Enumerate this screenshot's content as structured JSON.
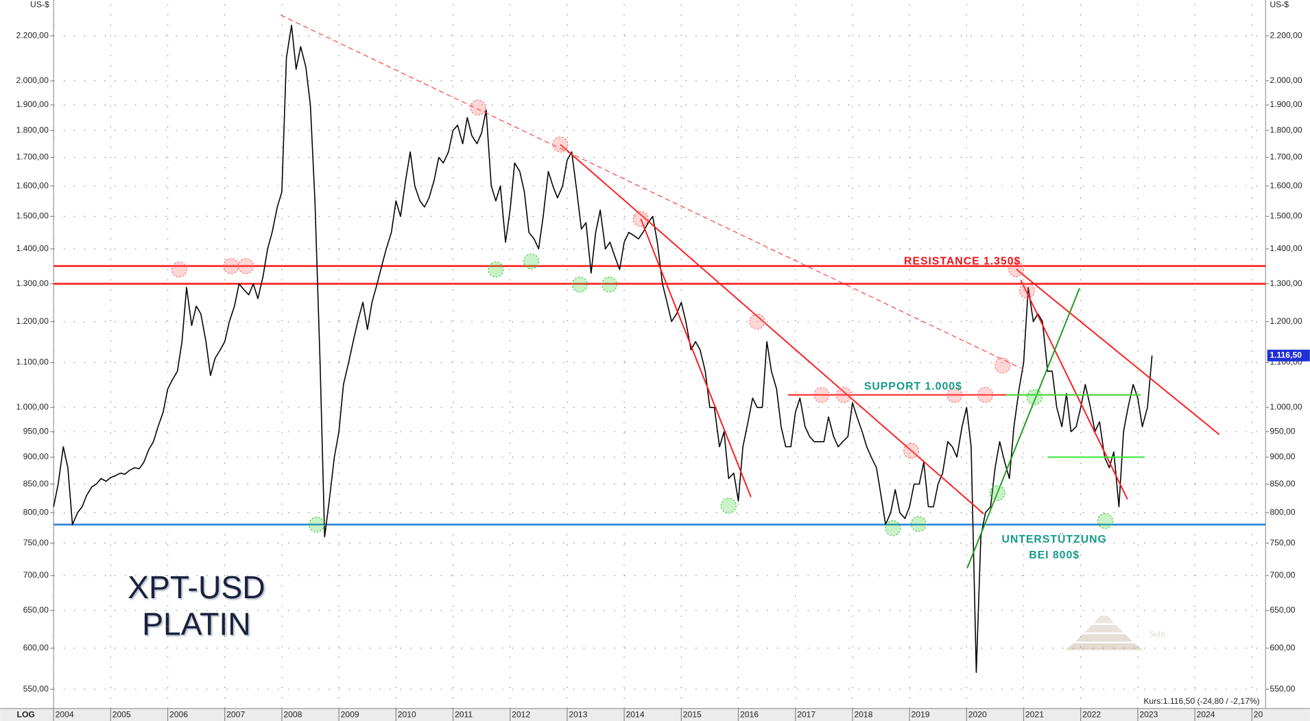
{
  "chart_data": {
    "type": "line",
    "title": "XPT-USD",
    "subtitle": "PLATIN",
    "y_unit": "US-$",
    "scale_label": "LOG",
    "log_scale": true,
    "grid": true,
    "logo": "Solit",
    "quote_text": "Kurs:1.116,50 (-24,80 / -2,17%)",
    "last_price": 1116.5,
    "last_price_label": "1.116,50",
    "xlim": [
      2004,
      2025.24
    ],
    "ylim": [
      528,
      2353
    ],
    "xticks": [
      2004,
      2005,
      2006,
      2007,
      2008,
      2009,
      2010,
      2011,
      2012,
      2013,
      2014,
      2015,
      2016,
      2017,
      2018,
      2019,
      2020,
      2021,
      2022,
      2023,
      2024,
      {
        "value": 2025,
        "label": "20"
      }
    ],
    "yticks": [
      {
        "value": 550,
        "label": "550,00"
      },
      {
        "value": 600,
        "label": "600,00"
      },
      {
        "value": 650,
        "label": "650,00"
      },
      {
        "value": 700,
        "label": "700,00"
      },
      {
        "value": 750,
        "label": "750,00"
      },
      {
        "value": 800,
        "label": "800,00"
      },
      {
        "value": 850,
        "label": "850,00"
      },
      {
        "value": 900,
        "label": "900,00"
      },
      {
        "value": 950,
        "label": "950,00"
      },
      {
        "value": 1000,
        "label": "1.000,00"
      },
      {
        "value": 1100,
        "label": "1.100,00"
      },
      {
        "value": 1200,
        "label": "1.200,00"
      },
      {
        "value": 1300,
        "label": "1.300,00"
      },
      {
        "value": 1400,
        "label": "1.400,00"
      },
      {
        "value": 1500,
        "label": "1.500,00"
      },
      {
        "value": 1600,
        "label": "1.600,00"
      },
      {
        "value": 1700,
        "label": "1.700,00"
      },
      {
        "value": 1800,
        "label": "1.800,00"
      },
      {
        "value": 1900,
        "label": "1.900,00"
      },
      {
        "value": 2000,
        "label": "2.000,00"
      },
      {
        "value": 2200,
        "label": "2.200,00"
      }
    ],
    "x": [
      2004,
      2004.08,
      2004.17,
      2004.25,
      2004.33,
      2004.42,
      2004.5,
      2004.58,
      2004.67,
      2004.75,
      2004.83,
      2004.92,
      2005,
      2005.08,
      2005.17,
      2005.25,
      2005.33,
      2005.42,
      2005.5,
      2005.58,
      2005.67,
      2005.75,
      2005.83,
      2005.92,
      2006,
      2006.08,
      2006.17,
      2006.25,
      2006.33,
      2006.42,
      2006.5,
      2006.58,
      2006.67,
      2006.75,
      2006.83,
      2006.92,
      2007,
      2007.08,
      2007.17,
      2007.25,
      2007.33,
      2007.42,
      2007.5,
      2007.58,
      2007.67,
      2007.75,
      2007.83,
      2007.92,
      2008,
      2008.08,
      2008.17,
      2008.25,
      2008.33,
      2008.42,
      2008.5,
      2008.58,
      2008.67,
      2008.75,
      2008.83,
      2008.92,
      2009,
      2009.08,
      2009.17,
      2009.25,
      2009.33,
      2009.42,
      2009.5,
      2009.58,
      2009.67,
      2009.75,
      2009.83,
      2009.92,
      2010,
      2010.08,
      2010.17,
      2010.25,
      2010.33,
      2010.42,
      2010.5,
      2010.58,
      2010.67,
      2010.75,
      2010.83,
      2010.92,
      2011,
      2011.08,
      2011.17,
      2011.25,
      2011.33,
      2011.42,
      2011.5,
      2011.58,
      2011.67,
      2011.75,
      2011.83,
      2011.92,
      2012,
      2012.08,
      2012.17,
      2012.25,
      2012.33,
      2012.42,
      2012.5,
      2012.58,
      2012.67,
      2012.75,
      2012.83,
      2012.92,
      2013,
      2013.08,
      2013.17,
      2013.25,
      2013.33,
      2013.42,
      2013.5,
      2013.58,
      2013.67,
      2013.75,
      2013.83,
      2013.92,
      2014,
      2014.08,
      2014.17,
      2014.25,
      2014.33,
      2014.42,
      2014.5,
      2014.58,
      2014.67,
      2014.75,
      2014.83,
      2014.92,
      2015,
      2015.08,
      2015.17,
      2015.25,
      2015.33,
      2015.42,
      2015.5,
      2015.58,
      2015.67,
      2015.75,
      2015.83,
      2015.92,
      2016,
      2016.08,
      2016.17,
      2016.25,
      2016.33,
      2016.42,
      2016.5,
      2016.58,
      2016.67,
      2016.75,
      2016.83,
      2016.92,
      2017,
      2017.08,
      2017.17,
      2017.25,
      2017.33,
      2017.42,
      2017.5,
      2017.58,
      2017.67,
      2017.75,
      2017.83,
      2017.92,
      2018,
      2018.08,
      2018.17,
      2018.25,
      2018.33,
      2018.42,
      2018.5,
      2018.58,
      2018.67,
      2018.75,
      2018.83,
      2018.92,
      2019,
      2019.08,
      2019.17,
      2019.25,
      2019.33,
      2019.42,
      2019.5,
      2019.58,
      2019.67,
      2019.75,
      2019.83,
      2019.92,
      2020,
      2020.08,
      2020.17,
      2020.25,
      2020.33,
      2020.42,
      2020.5,
      2020.58,
      2020.67,
      2020.75,
      2020.83,
      2020.92,
      2021,
      2021.08,
      2021.17,
      2021.25,
      2021.33,
      2021.42,
      2021.5,
      2021.58,
      2021.67,
      2021.75,
      2021.83,
      2021.92,
      2022,
      2022.08,
      2022.17,
      2022.25,
      2022.33,
      2022.42,
      2022.5,
      2022.58,
      2022.67,
      2022.75,
      2022.83,
      2022.92,
      2023,
      2023.08,
      2023.17,
      2023.25
    ],
    "series": [
      {
        "color": "#000000",
        "values": [
          810,
          850,
          920,
          880,
          780,
          800,
          810,
          830,
          845,
          850,
          860,
          855,
          862,
          865,
          870,
          868,
          875,
          880,
          878,
          890,
          915,
          930,
          960,
          990,
          1040,
          1060,
          1080,
          1150,
          1290,
          1190,
          1240,
          1220,
          1150,
          1070,
          1110,
          1130,
          1150,
          1200,
          1240,
          1300,
          1285,
          1270,
          1300,
          1260,
          1320,
          1400,
          1450,
          1530,
          1580,
          2100,
          2250,
          2050,
          2150,
          2060,
          1900,
          1550,
          1100,
          760,
          820,
          900,
          950,
          1050,
          1100,
          1150,
          1200,
          1250,
          1180,
          1250,
          1300,
          1350,
          1400,
          1450,
          1550,
          1500,
          1620,
          1720,
          1600,
          1550,
          1530,
          1560,
          1620,
          1700,
          1680,
          1720,
          1800,
          1820,
          1750,
          1850,
          1780,
          1750,
          1790,
          1880,
          1600,
          1550,
          1600,
          1420,
          1520,
          1680,
          1650,
          1580,
          1450,
          1430,
          1400,
          1500,
          1650,
          1600,
          1560,
          1600,
          1690,
          1720,
          1580,
          1460,
          1480,
          1330,
          1450,
          1520,
          1400,
          1420,
          1380,
          1340,
          1420,
          1450,
          1440,
          1430,
          1450,
          1480,
          1500,
          1420,
          1300,
          1250,
          1200,
          1220,
          1250,
          1200,
          1130,
          1150,
          1130,
          1080,
          1000,
          1000,
          920,
          950,
          860,
          870,
          820,
          920,
          970,
          1020,
          1000,
          1000,
          1150,
          1080,
          1040,
          960,
          920,
          920,
          990,
          1020,
          960,
          940,
          930,
          930,
          930,
          980,
          940,
          920,
          930,
          940,
          1010,
          980,
          950,
          920,
          900,
          880,
          830,
          780,
          800,
          840,
          800,
          790,
          810,
          850,
          850,
          890,
          810,
          810,
          850,
          870,
          930,
          920,
          900,
          960,
          1000,
          920,
          570,
          760,
          800,
          810,
          880,
          930,
          890,
          860,
          960,
          1040,
          1100,
          1290,
          1200,
          1220,
          1200,
          1080,
          1080,
          1000,
          960,
          1030,
          950,
          960,
          1000,
          1050,
          1000,
          950,
          970,
          900,
          880,
          910,
          810,
          950,
          1000,
          1050,
          1020,
          960,
          1000,
          1116.5
        ]
      }
    ],
    "levels": [
      {
        "value": 1350,
        "color": "#ff1a1a"
      },
      {
        "value": 1300,
        "color": "#ff1a1a"
      },
      {
        "value": 780,
        "color": "#2a86d6"
      }
    ],
    "trendlines": [
      {
        "x": [
          2007.98,
          2020.95
        ],
        "y": [
          2299,
          1087
        ],
        "color": "#ff4040",
        "dashed": true
      },
      {
        "x": [
          2012.88,
          2020.3
        ],
        "y": [
          1747,
          798
        ],
        "color": "#ff1a1a",
        "dashed": false
      },
      {
        "x": [
          2014.29,
          2016.22
        ],
        "y": [
          1492,
          827
        ],
        "color": "#ff1a1a",
        "dashed": false
      },
      {
        "x": [
          2020.87,
          2024.43
        ],
        "y": [
          1341,
          944
        ],
        "color": "#ff1a1a",
        "dashed": false
      },
      {
        "x": [
          2020.95,
          2022.82
        ],
        "y": [
          1310,
          823
        ],
        "color": "#ff1a1a",
        "dashed": false
      },
      {
        "x": [
          2020.01,
          2021.98
        ],
        "y": [
          711,
          1288
        ],
        "color": "#1f9a1f",
        "dashed": false
      },
      {
        "x": [
          2016.87,
          2023.03
        ],
        "y": [
          1027,
          1027
        ],
        "color": "#ff1a1a",
        "dashed": false
      },
      {
        "x": [
          2020.69,
          2023.05
        ],
        "y": [
          1027,
          1027
        ],
        "color": "#33e633",
        "dashed": false
      },
      {
        "x": [
          2021.42,
          2023.12
        ],
        "y": [
          900,
          900
        ],
        "color": "#33e633",
        "dashed": false
      }
    ],
    "pivots_high": {
      "color": "#ff6b6b",
      "x": [
        2006.2,
        2007.11,
        2007.37,
        2011.44,
        2012.88,
        2014.29,
        2016.33,
        2017.46,
        2017.85,
        2019.03,
        2019.79,
        2020.33,
        2020.63,
        2020.87,
        2021.06
      ],
      "y": [
        1340,
        1350,
        1350,
        1890,
        1747,
        1492,
        1200,
        1027,
        1027,
        912,
        1027,
        1027,
        1093,
        1341,
        1281
      ]
    },
    "pivots_low": {
      "color": "#3ccf3c",
      "x": [
        2008.61,
        2011.75,
        2012.37,
        2013.22,
        2013.74,
        2015.83,
        2018.71,
        2019.16,
        2020.54,
        2021.19,
        2022.43
      ],
      "y": [
        780,
        1340,
        1363,
        1298,
        1298,
        812,
        774,
        781,
        834,
        1022,
        786
      ]
    },
    "annotations": [
      {
        "text": "RESISTANCE 1.350$",
        "color": "#e8141a"
      },
      {
        "text": "SUPPORT 1.000$",
        "color": "#14998a"
      },
      {
        "text": "UNTERSTÜTZUNG",
        "color": "#14998a"
      },
      {
        "text": "BEI 800$",
        "color": "#14998a"
      }
    ]
  }
}
